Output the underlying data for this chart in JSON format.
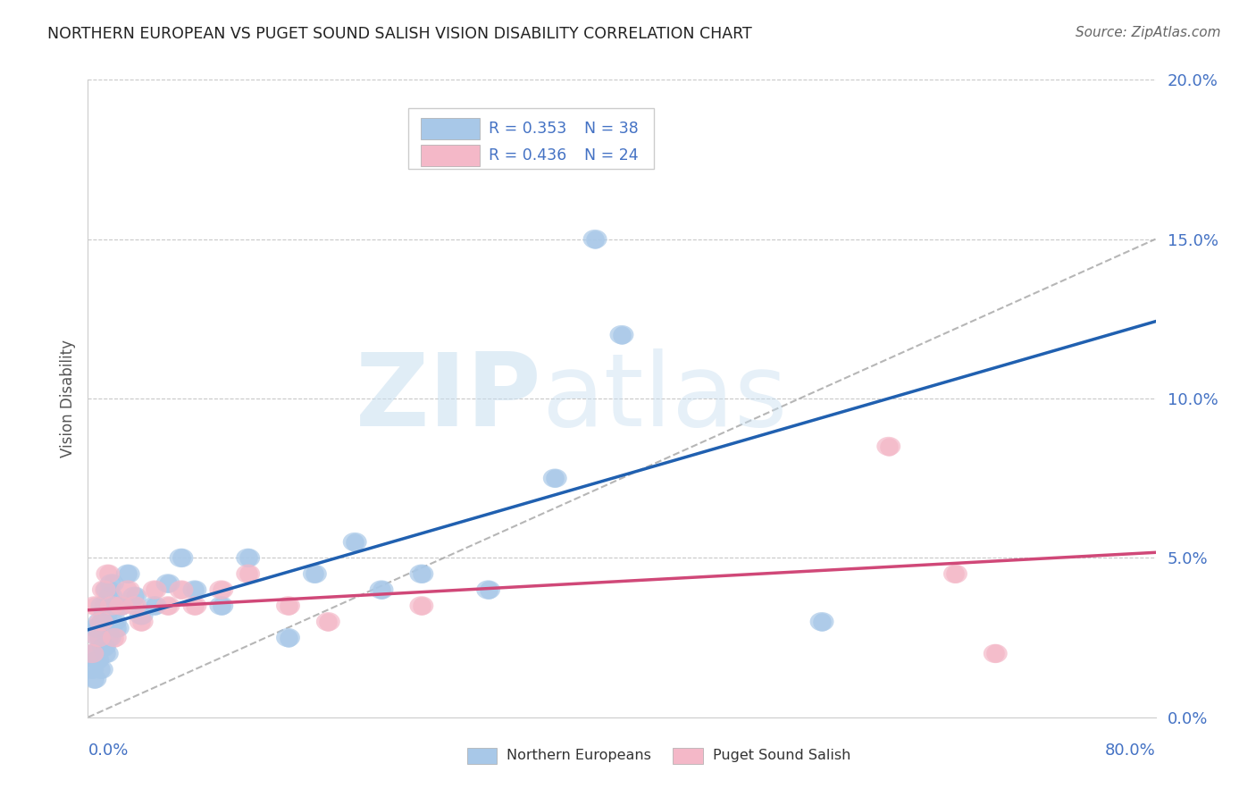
{
  "title": "NORTHERN EUROPEAN VS PUGET SOUND SALISH VISION DISABILITY CORRELATION CHART",
  "source": "Source: ZipAtlas.com",
  "ylabel": "Vision Disability",
  "ytick_values": [
    0.0,
    5.0,
    10.0,
    15.0,
    20.0
  ],
  "xlim": [
    0.0,
    80.0
  ],
  "ylim": [
    0.0,
    20.0
  ],
  "legend_blue_r": "R = 0.353",
  "legend_blue_n": "N = 38",
  "legend_pink_r": "R = 0.436",
  "legend_pink_n": "N = 24",
  "blue_color": "#a8c8e8",
  "pink_color": "#f4b8c8",
  "blue_line_color": "#2060b0",
  "pink_line_color": "#d04878",
  "dash_line_color": "#aaaaaa",
  "label_color": "#4472c4",
  "grid_color": "#bbbbbb",
  "bg_color": "#ffffff",
  "title_color": "#222222",
  "source_color": "#666666",
  "watermark_color": "#c8dff0",
  "blue_points_x": [
    0.3,
    0.4,
    0.5,
    0.6,
    0.7,
    0.8,
    0.9,
    1.0,
    1.1,
    1.2,
    1.3,
    1.4,
    1.5,
    1.6,
    1.7,
    1.8,
    2.0,
    2.2,
    2.5,
    3.0,
    3.5,
    4.0,
    5.0,
    6.0,
    7.0,
    8.0,
    10.0,
    12.0,
    15.0,
    17.0,
    20.0,
    22.0,
    25.0,
    30.0,
    35.0,
    38.0,
    40.0,
    55.0
  ],
  "blue_points_y": [
    1.5,
    2.0,
    1.2,
    2.8,
    1.8,
    2.5,
    3.0,
    1.5,
    3.5,
    2.2,
    3.2,
    2.0,
    4.0,
    2.5,
    3.8,
    4.2,
    3.0,
    2.8,
    3.5,
    4.5,
    3.8,
    3.2,
    3.5,
    4.2,
    5.0,
    4.0,
    3.5,
    5.0,
    2.5,
    4.5,
    5.5,
    4.0,
    4.5,
    4.0,
    7.5,
    15.0,
    12.0,
    3.0
  ],
  "pink_points_x": [
    0.3,
    0.5,
    0.8,
    1.0,
    1.2,
    1.5,
    1.8,
    2.0,
    2.5,
    3.0,
    3.5,
    4.0,
    5.0,
    6.0,
    7.0,
    8.0,
    10.0,
    12.0,
    15.0,
    18.0,
    25.0,
    60.0,
    65.0,
    68.0
  ],
  "pink_points_y": [
    2.0,
    3.5,
    2.5,
    3.0,
    4.0,
    4.5,
    3.5,
    2.5,
    3.5,
    4.0,
    3.5,
    3.0,
    4.0,
    3.5,
    4.0,
    3.5,
    4.0,
    4.5,
    3.5,
    3.0,
    3.5,
    8.5,
    4.5,
    2.0
  ]
}
